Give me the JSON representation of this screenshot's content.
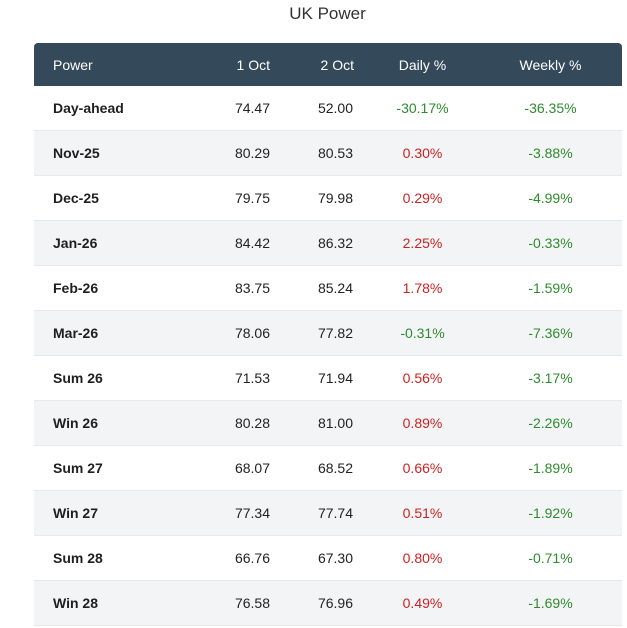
{
  "title": "UK Power",
  "columns": [
    "Power",
    "1 Oct",
    "2 Oct",
    "Daily %",
    "Weekly %"
  ],
  "colors": {
    "header_bg": "#34495a",
    "negative": "#2e8b2e",
    "positive": "#cc2222"
  },
  "rows": [
    {
      "name": "Day-ahead",
      "oct1": "74.47",
      "oct2": "52.00",
      "daily": "-30.17%",
      "weekly": "-36.35%"
    },
    {
      "name": "Nov-25",
      "oct1": "80.29",
      "oct2": "80.53",
      "daily": "0.30%",
      "weekly": "-3.88%"
    },
    {
      "name": "Dec-25",
      "oct1": "79.75",
      "oct2": "79.98",
      "daily": "0.29%",
      "weekly": "-4.99%"
    },
    {
      "name": "Jan-26",
      "oct1": "84.42",
      "oct2": "86.32",
      "daily": "2.25%",
      "weekly": "-0.33%"
    },
    {
      "name": "Feb-26",
      "oct1": "83.75",
      "oct2": "85.24",
      "daily": "1.78%",
      "weekly": "-1.59%"
    },
    {
      "name": "Mar-26",
      "oct1": "78.06",
      "oct2": "77.82",
      "daily": "-0.31%",
      "weekly": "-7.36%"
    },
    {
      "name": "Sum 26",
      "oct1": "71.53",
      "oct2": "71.94",
      "daily": "0.56%",
      "weekly": "-3.17%"
    },
    {
      "name": "Win 26",
      "oct1": "80.28",
      "oct2": "81.00",
      "daily": "0.89%",
      "weekly": "-2.26%"
    },
    {
      "name": "Sum 27",
      "oct1": "68.07",
      "oct2": "68.52",
      "daily": "0.66%",
      "weekly": "-1.89%"
    },
    {
      "name": "Win 27",
      "oct1": "77.34",
      "oct2": "77.74",
      "daily": "0.51%",
      "weekly": "-1.92%"
    },
    {
      "name": "Sum 28",
      "oct1": "66.76",
      "oct2": "67.30",
      "daily": "0.80%",
      "weekly": "-0.71%"
    },
    {
      "name": "Win 28",
      "oct1": "76.58",
      "oct2": "76.96",
      "daily": "0.49%",
      "weekly": "-1.69%"
    }
  ]
}
